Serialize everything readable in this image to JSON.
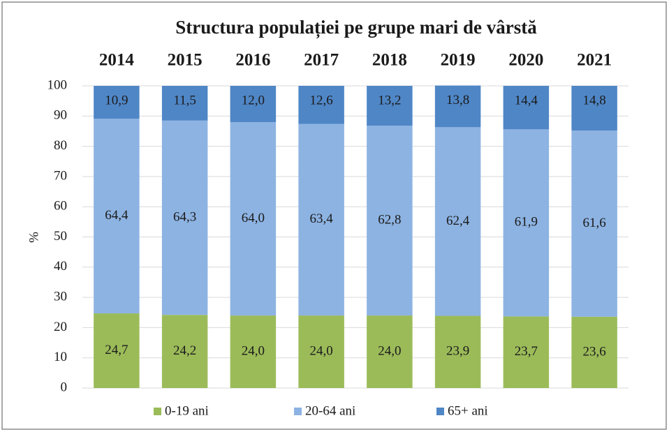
{
  "chart_data": {
    "type": "stacked_bar",
    "title": "Structura populației pe grupe mari de vârstă",
    "y_label": "%",
    "categories": [
      "2014",
      "2015",
      "2016",
      "2017",
      "2018",
      "2019",
      "2020",
      "2021"
    ],
    "series": [
      {
        "name": "0-19 ani",
        "color": "#9bbb59",
        "values": [
          24.7,
          24.2,
          24.0,
          24.0,
          24.0,
          23.9,
          23.7,
          23.6
        ],
        "value_labels": [
          "24,7",
          "24,2",
          "24,0",
          "24,0",
          "24,0",
          "23,9",
          "23,7",
          "23,6"
        ]
      },
      {
        "name": "20-64 ani",
        "color": "#8db3e2",
        "values": [
          64.4,
          64.3,
          64.0,
          63.4,
          62.8,
          62.4,
          61.9,
          61.6
        ],
        "value_labels": [
          "64,4",
          "64,3",
          "64,0",
          "63,4",
          "62,8",
          "62,4",
          "61,9",
          "61,6"
        ]
      },
      {
        "name": "65+ ani",
        "color": "#4f86c6",
        "values": [
          10.9,
          11.5,
          12.0,
          12.6,
          13.2,
          13.8,
          14.4,
          14.8
        ],
        "value_labels": [
          "10,9",
          "11,5",
          "12,0",
          "12,6",
          "13,2",
          "13,8",
          "14,4",
          "14,8"
        ]
      }
    ],
    "ylim": [
      0,
      100
    ],
    "yticks": [
      0,
      10,
      20,
      30,
      40,
      50,
      60,
      70,
      80,
      90,
      100
    ],
    "grid": true,
    "legend": "bottom"
  }
}
